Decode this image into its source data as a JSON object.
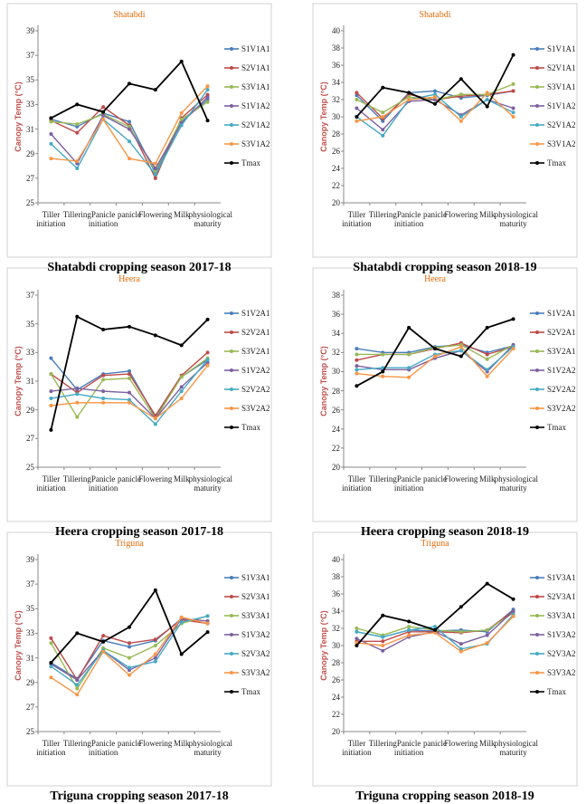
{
  "chart_data": [
    {
      "type": "line",
      "title": "Shatabdi",
      "caption": "Shatabdi cropping season 2017-18",
      "y_label": "Canopy Temp (°C)",
      "categories": [
        "Tiller initiation",
        "Tillering",
        "Panicle initiation",
        "panicle",
        "Flowering",
        "Milk",
        "physiological maturity"
      ],
      "ylim": [
        25,
        39
      ],
      "yticks": [
        25,
        27,
        29,
        31,
        33,
        35,
        37,
        39
      ],
      "grid": false,
      "legend": "right",
      "series": [
        {
          "name": "S1V1A1",
          "color": "#4a7ebb",
          "values": [
            31.8,
            31.2,
            32.3,
            31.6,
            27.4,
            31.6,
            33.4
          ]
        },
        {
          "name": "S2V1A1",
          "color": "#be4b48",
          "values": [
            31.7,
            30.7,
            32.8,
            31.3,
            27.0,
            31.9,
            33.8
          ]
        },
        {
          "name": "S3V1A1",
          "color": "#98b954",
          "values": [
            31.6,
            31.4,
            32.2,
            31.2,
            27.6,
            31.8,
            33.2
          ]
        },
        {
          "name": "S1V1A2",
          "color": "#7d60a0",
          "values": [
            30.6,
            28.2,
            32.1,
            31.0,
            27.8,
            31.5,
            33.6
          ]
        },
        {
          "name": "S2V1A2",
          "color": "#46aac5",
          "values": [
            29.8,
            27.8,
            31.8,
            30.0,
            27.3,
            31.3,
            34.2
          ]
        },
        {
          "name": "S3V1A2",
          "color": "#f79646",
          "values": [
            28.6,
            28.4,
            31.8,
            28.6,
            28.2,
            32.3,
            34.5
          ]
        },
        {
          "name": "Tmax",
          "color": "#000000",
          "values": [
            31.9,
            33.0,
            32.4,
            34.7,
            34.2,
            36.5,
            31.7
          ]
        }
      ]
    },
    {
      "type": "line",
      "title": "Shatabdi",
      "caption": "Shatabdi cropping season 2018-19",
      "y_label": "Canopy Temp (°C)",
      "categories": [
        "Tiller initiation",
        "Tillering",
        "Panicle initiation",
        "panicle",
        "Flowering",
        "Milk",
        "physiological maturity"
      ],
      "ylim": [
        20,
        40
      ],
      "yticks": [
        20,
        22,
        24,
        26,
        28,
        30,
        32,
        34,
        36,
        38,
        40
      ],
      "grid": false,
      "legend": "right",
      "series": [
        {
          "name": "S1V1A1",
          "color": "#4a7ebb",
          "values": [
            32.5,
            29.5,
            32.8,
            33.0,
            32.2,
            32.5,
            33.0
          ]
        },
        {
          "name": "S2V1A1",
          "color": "#be4b48",
          "values": [
            32.8,
            29.8,
            32.6,
            32.0,
            32.4,
            32.6,
            33.0
          ]
        },
        {
          "name": "S3V1A1",
          "color": "#98b954",
          "values": [
            32.0,
            30.5,
            32.3,
            32.0,
            32.6,
            32.6,
            33.8
          ]
        },
        {
          "name": "S1V1A2",
          "color": "#7d60a0",
          "values": [
            31.0,
            28.5,
            31.8,
            32.0,
            30.2,
            32.0,
            31.0
          ]
        },
        {
          "name": "S2V1A2",
          "color": "#46aac5",
          "values": [
            30.0,
            27.8,
            32.0,
            32.6,
            30.0,
            32.0,
            30.5
          ]
        },
        {
          "name": "S3V1A2",
          "color": "#f79646",
          "values": [
            29.5,
            30.0,
            32.0,
            32.3,
            29.5,
            32.8,
            30.0
          ]
        },
        {
          "name": "Tmax",
          "color": "#000000",
          "values": [
            30.0,
            33.4,
            32.8,
            31.5,
            34.4,
            31.2,
            37.2
          ]
        }
      ]
    },
    {
      "type": "line",
      "title": "Heera",
      "caption": "Heera  cropping season 2017-18",
      "y_label": "Canopy Temp (°C)",
      "categories": [
        "Tiller initiation",
        "Tillering",
        "Panicle initiation",
        "panicle",
        "Flowering",
        "Milk",
        "physiological maturity"
      ],
      "ylim": [
        25,
        37
      ],
      "yticks": [
        25,
        27,
        29,
        31,
        33,
        35,
        37
      ],
      "grid": false,
      "legend": "right",
      "series": [
        {
          "name": "S1V2A1",
          "color": "#4a7ebb",
          "values": [
            32.6,
            30.4,
            31.5,
            31.7,
            28.5,
            31.3,
            32.5
          ]
        },
        {
          "name": "S2V2A1",
          "color": "#be4b48",
          "values": [
            31.5,
            30.2,
            31.4,
            31.5,
            28.6,
            31.4,
            33.0
          ]
        },
        {
          "name": "S3V2A1",
          "color": "#98b954",
          "values": [
            31.5,
            28.5,
            31.1,
            31.2,
            28.4,
            31.3,
            32.6
          ]
        },
        {
          "name": "S1V2A2",
          "color": "#7d60a0",
          "values": [
            30.3,
            30.5,
            30.3,
            30.2,
            28.4,
            30.6,
            32.3
          ]
        },
        {
          "name": "S2V2A2",
          "color": "#46aac5",
          "values": [
            29.8,
            30.1,
            29.8,
            29.7,
            28.0,
            30.3,
            32.5
          ]
        },
        {
          "name": "S3V2A2",
          "color": "#f79646",
          "values": [
            29.3,
            29.5,
            29.5,
            29.5,
            28.4,
            29.8,
            32.1
          ]
        },
        {
          "name": "Tmax",
          "color": "#000000",
          "values": [
            27.6,
            35.5,
            34.6,
            34.8,
            34.2,
            33.5,
            35.3
          ]
        }
      ]
    },
    {
      "type": "line",
      "title": "Heera",
      "caption": "Heera cropping season 2018-19",
      "y_label": "Canopy Temp (°C)",
      "categories": [
        "Tiller initiation",
        "Tillering",
        "Panicle initiation",
        "panicle",
        "Flowering",
        "Milk",
        "physiological maturity"
      ],
      "ylim": [
        20,
        38
      ],
      "yticks": [
        20,
        22,
        24,
        26,
        28,
        30,
        32,
        34,
        36,
        38
      ],
      "grid": false,
      "legend": "right",
      "series": [
        {
          "name": "S1V2A1",
          "color": "#4a7ebb",
          "values": [
            32.4,
            32.0,
            32.0,
            32.6,
            32.8,
            32.0,
            32.7
          ]
        },
        {
          "name": "S2V2A1",
          "color": "#be4b48",
          "values": [
            31.2,
            31.8,
            31.8,
            32.4,
            33.0,
            31.8,
            32.6
          ]
        },
        {
          "name": "S3V2A1",
          "color": "#98b954",
          "values": [
            31.8,
            31.8,
            31.8,
            32.5,
            32.8,
            31.3,
            32.8
          ]
        },
        {
          "name": "S1V2A2",
          "color": "#7d60a0",
          "values": [
            30.6,
            30.2,
            30.2,
            31.4,
            32.2,
            30.0,
            32.8
          ]
        },
        {
          "name": "S2V2A2",
          "color": "#46aac5",
          "values": [
            30.2,
            30.4,
            30.4,
            31.8,
            32.2,
            30.2,
            32.6
          ]
        },
        {
          "name": "S3V2A2",
          "color": "#f79646",
          "values": [
            29.8,
            29.5,
            29.4,
            31.6,
            32.6,
            29.5,
            32.4
          ]
        },
        {
          "name": "Tmax",
          "color": "#000000",
          "values": [
            28.5,
            30.0,
            34.6,
            32.4,
            31.6,
            34.6,
            35.5
          ]
        }
      ]
    },
    {
      "type": "line",
      "title": "Triguna",
      "caption": "Triguna cropping season 2017-18",
      "y_label": "Canopy Temp (°C)",
      "categories": [
        "Tiller initiation",
        "Tillering",
        "Panicle initiation",
        "panicle",
        "Flowering",
        "Milk",
        "physiological maturity"
      ],
      "ylim": [
        25,
        39
      ],
      "yticks": [
        25,
        27,
        29,
        31,
        33,
        35,
        37,
        39
      ],
      "grid": false,
      "legend": "right",
      "series": [
        {
          "name": "S1V3A1",
          "color": "#4a7ebb",
          "values": [
            30.6,
            29.3,
            32.4,
            31.9,
            32.4,
            34.2,
            33.8
          ]
        },
        {
          "name": "S2V3A1",
          "color": "#be4b48",
          "values": [
            32.6,
            29.2,
            32.8,
            32.2,
            32.5,
            34.1,
            33.8
          ]
        },
        {
          "name": "S3V3A1",
          "color": "#98b954",
          "values": [
            32.2,
            28.5,
            31.8,
            31.0,
            32.0,
            33.8,
            34.4
          ]
        },
        {
          "name": "S1V3A2",
          "color": "#7d60a0",
          "values": [
            30.5,
            29.2,
            31.6,
            30.0,
            31.0,
            34.2,
            34.0
          ]
        },
        {
          "name": "S2V3A2",
          "color": "#46aac5",
          "values": [
            30.3,
            28.8,
            31.6,
            30.2,
            30.7,
            33.9,
            34.4
          ]
        },
        {
          "name": "S3V3A2",
          "color": "#f79646",
          "values": [
            29.4,
            28.0,
            31.5,
            29.6,
            31.3,
            34.3,
            33.8
          ]
        },
        {
          "name": "Tmax",
          "color": "#000000",
          "values": [
            30.6,
            33.0,
            32.3,
            33.5,
            36.5,
            31.3,
            33.1
          ]
        }
      ]
    },
    {
      "type": "line",
      "title": "Triguna",
      "caption": "Triguna cropping season 2018-19",
      "y_label": "Canopy Temp (°C)",
      "categories": [
        "Tiller initiation",
        "Tillering",
        "Panicle initiation",
        "panicle",
        "Flowering",
        "Milk",
        "physiological maturity"
      ],
      "ylim": [
        20,
        40
      ],
      "yticks": [
        20,
        22,
        24,
        26,
        28,
        30,
        32,
        34,
        36,
        38,
        40
      ],
      "grid": false,
      "legend": "right",
      "series": [
        {
          "name": "S1V3A1",
          "color": "#4a7ebb",
          "values": [
            31.6,
            31.0,
            31.8,
            31.7,
            31.8,
            31.6,
            34.2
          ]
        },
        {
          "name": "S2V3A1",
          "color": "#be4b48",
          "values": [
            30.5,
            30.5,
            31.6,
            31.6,
            31.5,
            31.8,
            34.0
          ]
        },
        {
          "name": "S3V3A1",
          "color": "#98b954",
          "values": [
            32.0,
            31.2,
            32.2,
            31.8,
            31.6,
            31.8,
            33.8
          ]
        },
        {
          "name": "S1V3A2",
          "color": "#7d60a0",
          "values": [
            30.8,
            29.4,
            31.0,
            31.6,
            30.2,
            31.2,
            34.0
          ]
        },
        {
          "name": "S2V3A2",
          "color": "#46aac5",
          "values": [
            31.6,
            31.0,
            31.8,
            32.2,
            29.6,
            30.2,
            33.6
          ]
        },
        {
          "name": "S3V3A2",
          "color": "#f79646",
          "values": [
            30.3,
            30.0,
            31.2,
            31.5,
            29.3,
            30.3,
            33.4
          ]
        },
        {
          "name": "Tmax",
          "color": "#000000",
          "values": [
            30.0,
            33.5,
            32.8,
            31.8,
            34.5,
            37.2,
            35.4
          ]
        }
      ]
    }
  ]
}
